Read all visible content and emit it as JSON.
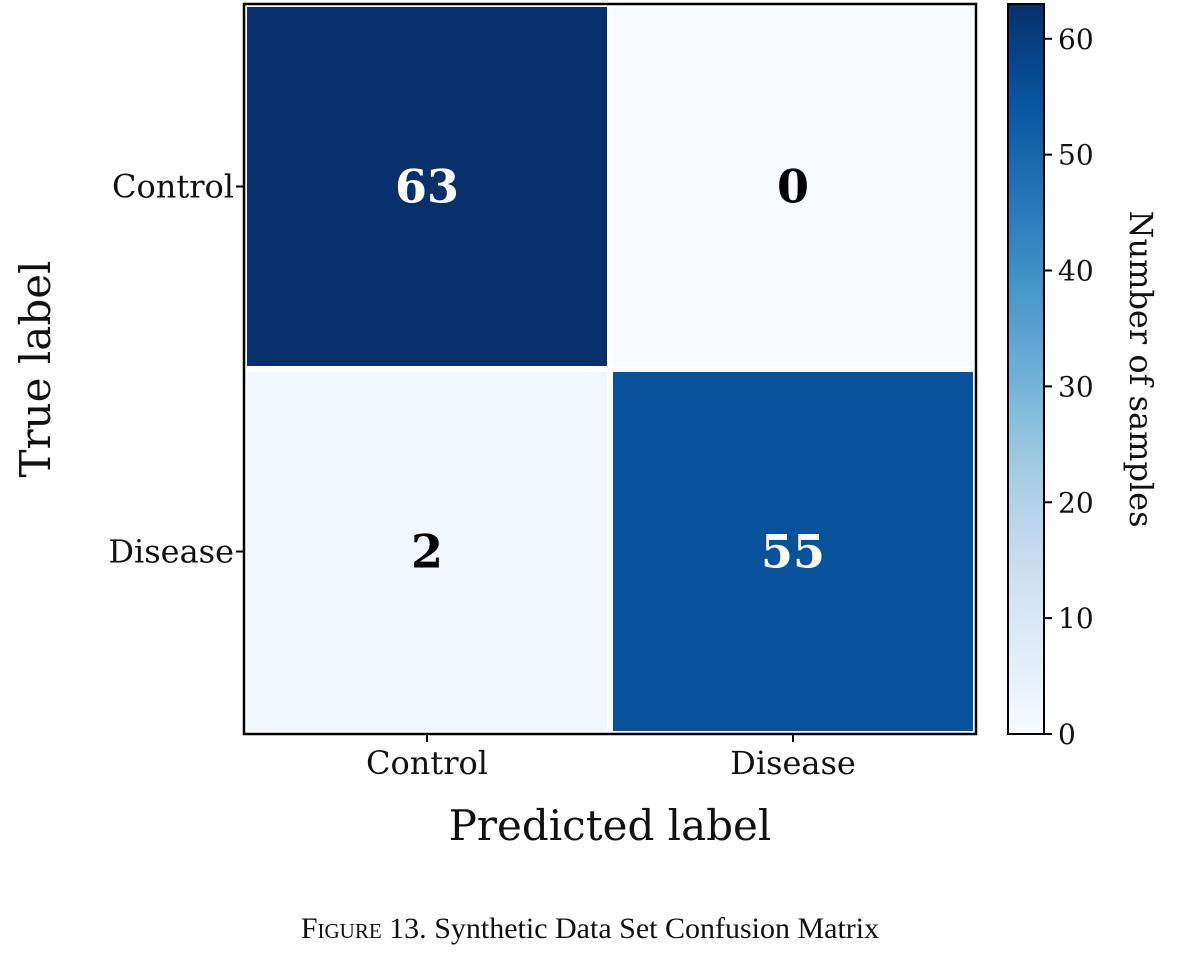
{
  "chart_data": {
    "type": "heatmap",
    "x_categories": [
      "Control",
      "Disease"
    ],
    "y_categories": [
      "Control",
      "Disease"
    ],
    "values": [
      [
        63,
        0
      ],
      [
        2,
        55
      ]
    ],
    "xlabel": "Predicted label",
    "ylabel": "True label",
    "colorbar": {
      "label": "Number of samples",
      "range": [
        0,
        63
      ],
      "ticks": [
        0,
        10,
        20,
        30,
        40,
        50,
        60
      ],
      "colormap": "Blues",
      "color_low": "#f7fbff",
      "color_high": "#08306b"
    },
    "grid": false,
    "legend": "colorbar-right"
  },
  "caption": {
    "label": "Figure 13.",
    "text": "Synthetic Data Set Confusion Matrix"
  }
}
